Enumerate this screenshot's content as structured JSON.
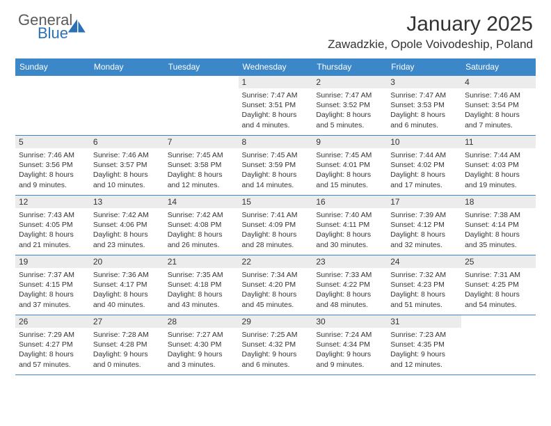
{
  "logo": {
    "general": "General",
    "blue": "Blue"
  },
  "title": "January 2025",
  "location": "Zawadzkie, Opole Voivodeship, Poland",
  "colors": {
    "header_bg": "#3b87c8",
    "header_fg": "#ffffff",
    "daynum_bg": "#ececec",
    "text": "#333333",
    "border": "#3b87c8",
    "logo_gray": "#5a5a5a",
    "logo_blue": "#2a72b5",
    "page_bg": "#ffffff"
  },
  "day_headers": [
    "Sunday",
    "Monday",
    "Tuesday",
    "Wednesday",
    "Thursday",
    "Friday",
    "Saturday"
  ],
  "weeks": [
    [
      {
        "n": "",
        "lines": []
      },
      {
        "n": "",
        "lines": []
      },
      {
        "n": "",
        "lines": []
      },
      {
        "n": "1",
        "lines": [
          "Sunrise: 7:47 AM",
          "Sunset: 3:51 PM",
          "Daylight: 8 hours",
          "and 4 minutes."
        ]
      },
      {
        "n": "2",
        "lines": [
          "Sunrise: 7:47 AM",
          "Sunset: 3:52 PM",
          "Daylight: 8 hours",
          "and 5 minutes."
        ]
      },
      {
        "n": "3",
        "lines": [
          "Sunrise: 7:47 AM",
          "Sunset: 3:53 PM",
          "Daylight: 8 hours",
          "and 6 minutes."
        ]
      },
      {
        "n": "4",
        "lines": [
          "Sunrise: 7:46 AM",
          "Sunset: 3:54 PM",
          "Daylight: 8 hours",
          "and 7 minutes."
        ]
      }
    ],
    [
      {
        "n": "5",
        "lines": [
          "Sunrise: 7:46 AM",
          "Sunset: 3:56 PM",
          "Daylight: 8 hours",
          "and 9 minutes."
        ]
      },
      {
        "n": "6",
        "lines": [
          "Sunrise: 7:46 AM",
          "Sunset: 3:57 PM",
          "Daylight: 8 hours",
          "and 10 minutes."
        ]
      },
      {
        "n": "7",
        "lines": [
          "Sunrise: 7:45 AM",
          "Sunset: 3:58 PM",
          "Daylight: 8 hours",
          "and 12 minutes."
        ]
      },
      {
        "n": "8",
        "lines": [
          "Sunrise: 7:45 AM",
          "Sunset: 3:59 PM",
          "Daylight: 8 hours",
          "and 14 minutes."
        ]
      },
      {
        "n": "9",
        "lines": [
          "Sunrise: 7:45 AM",
          "Sunset: 4:01 PM",
          "Daylight: 8 hours",
          "and 15 minutes."
        ]
      },
      {
        "n": "10",
        "lines": [
          "Sunrise: 7:44 AM",
          "Sunset: 4:02 PM",
          "Daylight: 8 hours",
          "and 17 minutes."
        ]
      },
      {
        "n": "11",
        "lines": [
          "Sunrise: 7:44 AM",
          "Sunset: 4:03 PM",
          "Daylight: 8 hours",
          "and 19 minutes."
        ]
      }
    ],
    [
      {
        "n": "12",
        "lines": [
          "Sunrise: 7:43 AM",
          "Sunset: 4:05 PM",
          "Daylight: 8 hours",
          "and 21 minutes."
        ]
      },
      {
        "n": "13",
        "lines": [
          "Sunrise: 7:42 AM",
          "Sunset: 4:06 PM",
          "Daylight: 8 hours",
          "and 23 minutes."
        ]
      },
      {
        "n": "14",
        "lines": [
          "Sunrise: 7:42 AM",
          "Sunset: 4:08 PM",
          "Daylight: 8 hours",
          "and 26 minutes."
        ]
      },
      {
        "n": "15",
        "lines": [
          "Sunrise: 7:41 AM",
          "Sunset: 4:09 PM",
          "Daylight: 8 hours",
          "and 28 minutes."
        ]
      },
      {
        "n": "16",
        "lines": [
          "Sunrise: 7:40 AM",
          "Sunset: 4:11 PM",
          "Daylight: 8 hours",
          "and 30 minutes."
        ]
      },
      {
        "n": "17",
        "lines": [
          "Sunrise: 7:39 AM",
          "Sunset: 4:12 PM",
          "Daylight: 8 hours",
          "and 32 minutes."
        ]
      },
      {
        "n": "18",
        "lines": [
          "Sunrise: 7:38 AM",
          "Sunset: 4:14 PM",
          "Daylight: 8 hours",
          "and 35 minutes."
        ]
      }
    ],
    [
      {
        "n": "19",
        "lines": [
          "Sunrise: 7:37 AM",
          "Sunset: 4:15 PM",
          "Daylight: 8 hours",
          "and 37 minutes."
        ]
      },
      {
        "n": "20",
        "lines": [
          "Sunrise: 7:36 AM",
          "Sunset: 4:17 PM",
          "Daylight: 8 hours",
          "and 40 minutes."
        ]
      },
      {
        "n": "21",
        "lines": [
          "Sunrise: 7:35 AM",
          "Sunset: 4:18 PM",
          "Daylight: 8 hours",
          "and 43 minutes."
        ]
      },
      {
        "n": "22",
        "lines": [
          "Sunrise: 7:34 AM",
          "Sunset: 4:20 PM",
          "Daylight: 8 hours",
          "and 45 minutes."
        ]
      },
      {
        "n": "23",
        "lines": [
          "Sunrise: 7:33 AM",
          "Sunset: 4:22 PM",
          "Daylight: 8 hours",
          "and 48 minutes."
        ]
      },
      {
        "n": "24",
        "lines": [
          "Sunrise: 7:32 AM",
          "Sunset: 4:23 PM",
          "Daylight: 8 hours",
          "and 51 minutes."
        ]
      },
      {
        "n": "25",
        "lines": [
          "Sunrise: 7:31 AM",
          "Sunset: 4:25 PM",
          "Daylight: 8 hours",
          "and 54 minutes."
        ]
      }
    ],
    [
      {
        "n": "26",
        "lines": [
          "Sunrise: 7:29 AM",
          "Sunset: 4:27 PM",
          "Daylight: 8 hours",
          "and 57 minutes."
        ]
      },
      {
        "n": "27",
        "lines": [
          "Sunrise: 7:28 AM",
          "Sunset: 4:28 PM",
          "Daylight: 9 hours",
          "and 0 minutes."
        ]
      },
      {
        "n": "28",
        "lines": [
          "Sunrise: 7:27 AM",
          "Sunset: 4:30 PM",
          "Daylight: 9 hours",
          "and 3 minutes."
        ]
      },
      {
        "n": "29",
        "lines": [
          "Sunrise: 7:25 AM",
          "Sunset: 4:32 PM",
          "Daylight: 9 hours",
          "and 6 minutes."
        ]
      },
      {
        "n": "30",
        "lines": [
          "Sunrise: 7:24 AM",
          "Sunset: 4:34 PM",
          "Daylight: 9 hours",
          "and 9 minutes."
        ]
      },
      {
        "n": "31",
        "lines": [
          "Sunrise: 7:23 AM",
          "Sunset: 4:35 PM",
          "Daylight: 9 hours",
          "and 12 minutes."
        ]
      },
      {
        "n": "",
        "lines": []
      }
    ]
  ]
}
